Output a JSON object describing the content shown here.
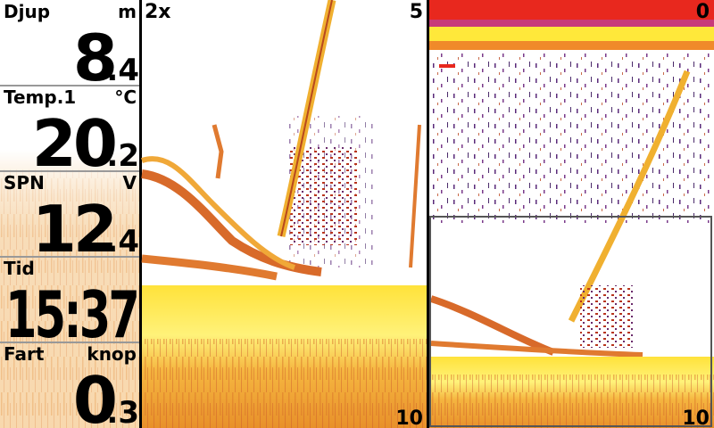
{
  "readouts": [
    {
      "label": "Djup",
      "unit": "m",
      "main": "8",
      "fraction": ".4"
    },
    {
      "label": "Temp.1",
      "unit": "°C",
      "main": "20",
      "fraction": ".2"
    },
    {
      "label": "SPN",
      "unit": "V",
      "main": "12",
      "fraction": ".4"
    },
    {
      "label": "Tid",
      "main": "15:37"
    },
    {
      "label": "Fart",
      "unit": "knop",
      "main": "0",
      "fraction": ".3"
    }
  ],
  "sonar_main": {
    "zoom": "2x",
    "depth_top": "5",
    "depth_bottom": "10"
  },
  "sonar_right": {
    "depth_top": "0",
    "depth_bottom": "10"
  }
}
